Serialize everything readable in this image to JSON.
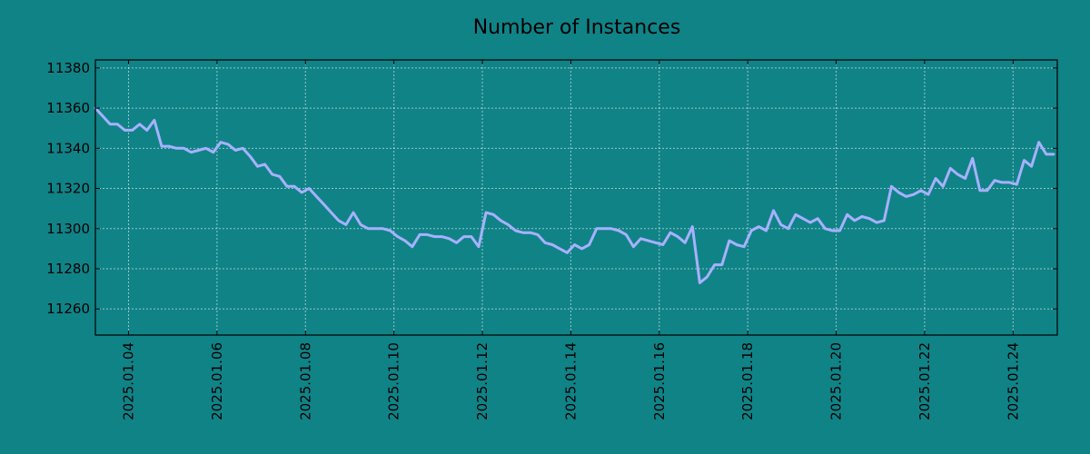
{
  "chart_data": {
    "type": "line",
    "title": "Number of Instances",
    "xlabel": "",
    "ylabel": "",
    "background_color": "#108387",
    "line_color": "#a7b1ff",
    "grid": true,
    "legend": "none",
    "xlim": [
      "2025-01-03T06:00",
      "2025-01-25T00:00"
    ],
    "ylim": [
      11247,
      11384
    ],
    "x_ticks": [
      "2025.01.04",
      "2025.01.06",
      "2025.01.08",
      "2025.01.10",
      "2025.01.12",
      "2025.01.14",
      "2025.01.16",
      "2025.01.18",
      "2025.01.20",
      "2025.01.22",
      "2025.01.24"
    ],
    "y_ticks": [
      11260,
      11280,
      11300,
      11320,
      11340,
      11360,
      11380
    ],
    "series": [
      {
        "x": [
          "2025-01-03T06:00",
          "2025-01-03T10:00",
          "2025-01-03T14:00",
          "2025-01-03T18:00",
          "2025-01-03T22:00",
          "2025-01-04T02:00",
          "2025-01-04T06:00",
          "2025-01-04T10:00",
          "2025-01-04T14:00",
          "2025-01-04T18:00",
          "2025-01-04T22:00",
          "2025-01-05T02:00",
          "2025-01-05T06:00",
          "2025-01-05T10:00",
          "2025-01-05T14:00",
          "2025-01-05T18:00",
          "2025-01-05T22:00",
          "2025-01-06T02:00",
          "2025-01-06T06:00",
          "2025-01-06T10:00",
          "2025-01-06T14:00",
          "2025-01-06T18:00",
          "2025-01-06T22:00",
          "2025-01-07T02:00",
          "2025-01-07T06:00",
          "2025-01-07T10:00",
          "2025-01-07T14:00",
          "2025-01-07T18:00",
          "2025-01-07T22:00",
          "2025-01-08T02:00",
          "2025-01-08T06:00",
          "2025-01-08T10:00",
          "2025-01-08T14:00",
          "2025-01-08T18:00",
          "2025-01-08T22:00",
          "2025-01-09T02:00",
          "2025-01-09T06:00",
          "2025-01-09T10:00",
          "2025-01-09T14:00",
          "2025-01-09T18:00",
          "2025-01-09T22:00",
          "2025-01-10T02:00",
          "2025-01-10T06:00",
          "2025-01-10T10:00",
          "2025-01-10T14:00",
          "2025-01-10T18:00",
          "2025-01-10T22:00",
          "2025-01-11T02:00",
          "2025-01-11T06:00",
          "2025-01-11T10:00",
          "2025-01-11T14:00",
          "2025-01-11T18:00",
          "2025-01-11T22:00",
          "2025-01-12T02:00",
          "2025-01-12T06:00",
          "2025-01-12T10:00",
          "2025-01-12T14:00",
          "2025-01-12T18:00",
          "2025-01-12T22:00",
          "2025-01-13T02:00",
          "2025-01-13T06:00",
          "2025-01-13T10:00",
          "2025-01-13T14:00",
          "2025-01-13T18:00",
          "2025-01-13T22:00",
          "2025-01-14T02:00",
          "2025-01-14T06:00",
          "2025-01-14T10:00",
          "2025-01-14T14:00",
          "2025-01-14T18:00",
          "2025-01-14T22:00",
          "2025-01-15T02:00",
          "2025-01-15T06:00",
          "2025-01-15T10:00",
          "2025-01-15T14:00",
          "2025-01-15T18:00",
          "2025-01-15T22:00",
          "2025-01-16T02:00",
          "2025-01-16T06:00",
          "2025-01-16T10:00",
          "2025-01-16T14:00",
          "2025-01-16T18:00",
          "2025-01-16T22:00",
          "2025-01-17T02:00",
          "2025-01-17T06:00",
          "2025-01-17T10:00",
          "2025-01-17T14:00",
          "2025-01-17T18:00",
          "2025-01-17T22:00",
          "2025-01-18T02:00",
          "2025-01-18T06:00",
          "2025-01-18T10:00",
          "2025-01-18T14:00",
          "2025-01-18T18:00",
          "2025-01-18T22:00",
          "2025-01-19T02:00",
          "2025-01-19T06:00",
          "2025-01-19T10:00",
          "2025-01-19T14:00",
          "2025-01-19T18:00",
          "2025-01-19T22:00",
          "2025-01-20T02:00",
          "2025-01-20T06:00",
          "2025-01-20T10:00",
          "2025-01-20T14:00",
          "2025-01-20T18:00",
          "2025-01-20T22:00",
          "2025-01-21T02:00",
          "2025-01-21T06:00",
          "2025-01-21T10:00",
          "2025-01-21T14:00",
          "2025-01-21T18:00",
          "2025-01-21T22:00",
          "2025-01-22T02:00",
          "2025-01-22T06:00",
          "2025-01-22T10:00",
          "2025-01-22T14:00",
          "2025-01-22T18:00",
          "2025-01-22T22:00",
          "2025-01-23T02:00",
          "2025-01-23T06:00",
          "2025-01-23T10:00",
          "2025-01-23T14:00",
          "2025-01-23T18:00",
          "2025-01-23T22:00",
          "2025-01-24T02:00",
          "2025-01-24T06:00",
          "2025-01-24T10:00",
          "2025-01-24T14:00",
          "2025-01-24T18:00",
          "2025-01-24T22:00"
        ],
        "values": [
          11360,
          11356,
          11352,
          11352,
          11349,
          11349,
          11352,
          11349,
          11354,
          11341,
          11341,
          11340,
          11340,
          11338,
          11339,
          11340,
          11338,
          11343,
          11342,
          11339,
          11340,
          11336,
          11331,
          11332,
          11327,
          11326,
          11321,
          11321,
          11318,
          11320,
          11316,
          11312,
          11308,
          11304,
          11302,
          11308,
          11302,
          11300,
          11300,
          11300,
          11299,
          11296,
          11294,
          11291,
          11297,
          11297,
          11296,
          11296,
          11295,
          11293,
          11296,
          11296,
          11291,
          11308,
          11307,
          11304,
          11302,
          11299,
          11298,
          11298,
          11297,
          11293,
          11292,
          11290,
          11288,
          11292,
          11290,
          11292,
          11300,
          11300,
          11300,
          11299,
          11297,
          11291,
          11295,
          11294,
          11293,
          11292,
          11298,
          11296,
          11293,
          11301,
          11273,
          11276,
          11282,
          11282,
          11294,
          11292,
          11291,
          11299,
          11301,
          11299,
          11309,
          11302,
          11300,
          11307,
          11305,
          11303,
          11305,
          11300,
          11299,
          11299,
          11307,
          11304,
          11306,
          11305,
          11303,
          11304,
          11321,
          11318,
          11316,
          11317,
          11319,
          11317,
          11325,
          11321,
          11330,
          11327,
          11325,
          11335,
          11319,
          11319,
          11324,
          11323,
          11323,
          11322,
          11334,
          11331,
          11343,
          11337,
          11337
        ]
      }
    ]
  }
}
